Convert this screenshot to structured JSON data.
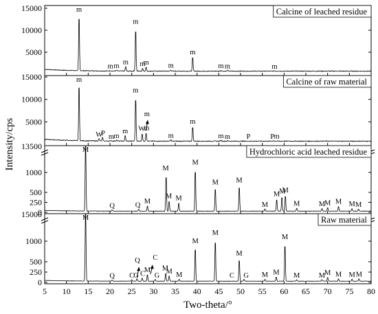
{
  "chart_data": {
    "type": "line",
    "xlabel": "Two-theta/°",
    "ylabel": "Intensity/cps",
    "xlim": [
      5,
      80
    ],
    "x_ticks": [
      "5",
      "10",
      "15",
      "20",
      "25",
      "30",
      "35",
      "40",
      "45",
      "50",
      "55",
      "60",
      "65",
      "70",
      "75",
      "80"
    ],
    "panels": [
      {
        "title": "Calcine of leached residue",
        "ylim": [
          0,
          15000
        ],
        "y_ticks": [
          {
            "v": 5000,
            "t": "5000"
          },
          {
            "v": 10000,
            "t": "10000"
          },
          {
            "v": 15000,
            "t": "15000"
          }
        ],
        "baseline": 700,
        "peaks": [
          [
            12.9,
            14200
          ],
          [
            20.1,
            850
          ],
          [
            21.5,
            900
          ],
          [
            23.6,
            1800
          ],
          [
            25.9,
            11000
          ],
          [
            27.5,
            1400
          ],
          [
            28.3,
            1700
          ],
          [
            34.0,
            1000
          ],
          [
            39.0,
            4100
          ],
          [
            45.5,
            900
          ],
          [
            47.0,
            850
          ],
          [
            57.8,
            800
          ]
        ],
        "labels": [
          {
            "t": "m",
            "x": 12.9,
            "y": 14200
          },
          {
            "t": "m",
            "x": 20.1,
            "y": 850
          },
          {
            "t": "m",
            "x": 21.5,
            "y": 900
          },
          {
            "t": "m",
            "x": 23.6,
            "y": 1800
          },
          {
            "t": "m",
            "x": 25.9,
            "y": 11000
          },
          {
            "t": "m",
            "x": 27.5,
            "y": 1400
          },
          {
            "t": "m",
            "x": 28.3,
            "y": 1700
          },
          {
            "t": "m",
            "x": 34.0,
            "y": 1000
          },
          {
            "t": "m",
            "x": 39.0,
            "y": 4100
          },
          {
            "t": "m",
            "x": 45.5,
            "y": 900
          },
          {
            "t": "m",
            "x": 47.0,
            "y": 850
          },
          {
            "t": "m",
            "x": 57.8,
            "y": 800
          }
        ]
      },
      {
        "title": "Calcine of raw material",
        "ylim": [
          0,
          15000
        ],
        "y_ticks": [
          {
            "v": 5000,
            "t": "5000"
          },
          {
            "v": 10000,
            "t": "10000"
          },
          {
            "v": 15000,
            "t": "15000"
          }
        ],
        "baseline": 700,
        "peaks": [
          [
            12.9,
            14200
          ],
          [
            17.5,
            1200
          ],
          [
            18.3,
            1500
          ],
          [
            20.3,
            800
          ],
          [
            21.5,
            950
          ],
          [
            23.5,
            2000
          ],
          [
            25.9,
            11100
          ],
          [
            27.4,
            2500
          ],
          [
            28.3,
            2700
          ],
          [
            34.0,
            1000
          ],
          [
            39.0,
            4100
          ],
          [
            45.5,
            900
          ],
          [
            47.0,
            800
          ],
          [
            57.5,
            850
          ]
        ],
        "labels": [
          {
            "t": "m",
            "x": 12.9,
            "y": 14200
          },
          {
            "t": "W",
            "x": 17.5,
            "y": 1200
          },
          {
            "t": "P",
            "x": 18.4,
            "y": 1500
          },
          {
            "t": "m",
            "x": 20.3,
            "y": 800
          },
          {
            "t": "m",
            "x": 21.5,
            "y": 950
          },
          {
            "t": "m",
            "x": 23.5,
            "y": 2000
          },
          {
            "t": "m",
            "x": 25.9,
            "y": 11100
          },
          {
            "t": "W",
            "x": 27.3,
            "y": 2500
          },
          {
            "t": "m",
            "x": 28.4,
            "y": 2700
          },
          {
            "t": "m",
            "x": 28.5,
            "y": 5800
          },
          {
            "t": "m",
            "x": 34.0,
            "y": 1000
          },
          {
            "t": "m",
            "x": 39.0,
            "y": 4100
          },
          {
            "t": "m",
            "x": 45.5,
            "y": 900
          },
          {
            "t": "m",
            "x": 47.0,
            "y": 800
          },
          {
            "t": "P",
            "x": 51.8,
            "y": 800
          },
          {
            "t": "P",
            "x": 57.3,
            "y": 800
          },
          {
            "t": "m",
            "x": 58.3,
            "y": 850
          }
        ],
        "arrows": [
          {
            "x": 28.5,
            "y0": 3000,
            "y1": 5000
          }
        ]
      },
      {
        "title": "Hydrochloric acid leached residue",
        "broken_axis": true,
        "break_value": 1500,
        "upper_tick": "13500",
        "ylim": [
          0,
          1500
        ],
        "y_ticks": [
          {
            "v": 0,
            "t": "0"
          },
          {
            "v": 250,
            "t": "250"
          },
          {
            "v": 500,
            "t": "500"
          },
          {
            "v": 1000,
            "t": "1000"
          }
        ],
        "baseline": 30,
        "peaks": [
          [
            14.4,
            2000
          ],
          [
            20.5,
            60
          ],
          [
            26.6,
            80
          ],
          [
            28.6,
            170
          ],
          [
            32.9,
            1000
          ],
          [
            33.6,
            300
          ],
          [
            35.8,
            250
          ],
          [
            39.6,
            1150
          ],
          [
            44.2,
            650
          ],
          [
            49.7,
            700
          ],
          [
            55.6,
            90
          ],
          [
            58.3,
            350
          ],
          [
            59.5,
            420
          ],
          [
            60.3,
            450
          ],
          [
            62.9,
            110
          ],
          [
            68.7,
            100
          ],
          [
            70.0,
            130
          ],
          [
            72.5,
            160
          ],
          [
            75.6,
            100
          ],
          [
            77.1,
            90
          ]
        ],
        "labels": [
          {
            "t": "M",
            "x": 14.4,
            "y": 1490
          },
          {
            "t": "Q",
            "x": 20.5,
            "y": 60
          },
          {
            "t": "Q",
            "x": 26.4,
            "y": 80
          },
          {
            "t": "M",
            "x": 28.6,
            "y": 170
          },
          {
            "t": "M",
            "x": 32.8,
            "y": 1000
          },
          {
            "t": "M",
            "x": 33.5,
            "y": 300
          },
          {
            "t": "M",
            "x": 35.8,
            "y": 250
          },
          {
            "t": "M",
            "x": 39.6,
            "y": 1150
          },
          {
            "t": "M",
            "x": 44.2,
            "y": 650
          },
          {
            "t": "M",
            "x": 49.7,
            "y": 700
          },
          {
            "t": "M",
            "x": 55.6,
            "y": 90
          },
          {
            "t": "M",
            "x": 58.3,
            "y": 350
          },
          {
            "t": "M",
            "x": 59.6,
            "y": 420
          },
          {
            "t": "M",
            "x": 60.3,
            "y": 450
          },
          {
            "t": "M",
            "x": 62.9,
            "y": 110
          },
          {
            "t": "M",
            "x": 68.7,
            "y": 100
          },
          {
            "t": "M",
            "x": 70.0,
            "y": 130
          },
          {
            "t": "M",
            "x": 72.5,
            "y": 160
          },
          {
            "t": "M",
            "x": 75.6,
            "y": 100
          },
          {
            "t": "M",
            "x": 77.1,
            "y": 90
          }
        ]
      },
      {
        "title": "Raw material",
        "broken_axis": true,
        "break_value": 1500,
        "upper_tick": "15000",
        "ylim": [
          0,
          1500
        ],
        "y_ticks": [
          {
            "v": 0,
            "t": "0"
          },
          {
            "v": 250,
            "t": "250"
          },
          {
            "v": 500,
            "t": "500"
          },
          {
            "v": 1000,
            "t": "1000"
          }
        ],
        "baseline": 30,
        "peaks": [
          [
            14.4,
            2000
          ],
          [
            20.5,
            60
          ],
          [
            25.0,
            70
          ],
          [
            26.2,
            90
          ],
          [
            27.4,
            110
          ],
          [
            28.6,
            200
          ],
          [
            30.4,
            80
          ],
          [
            32.8,
            240
          ],
          [
            33.6,
            170
          ],
          [
            35.9,
            80
          ],
          [
            39.6,
            900
          ],
          [
            44.2,
            1100
          ],
          [
            49.7,
            600
          ],
          [
            50.8,
            80
          ],
          [
            55.6,
            80
          ],
          [
            58.2,
            140
          ],
          [
            60.2,
            1000
          ],
          [
            62.9,
            70
          ],
          [
            68.7,
            70
          ],
          [
            70.0,
            130
          ],
          [
            72.5,
            90
          ],
          [
            75.6,
            80
          ],
          [
            77.2,
            90
          ]
        ],
        "labels": [
          {
            "t": "M",
            "x": 14.4,
            "y": 1490
          },
          {
            "t": "Q",
            "x": 20.5,
            "y": 60
          },
          {
            "t": "C",
            "x": 25.0,
            "y": 70
          },
          {
            "t": "G",
            "x": 26.0,
            "y": 70
          },
          {
            "t": "Q",
            "x": 26.3,
            "y": 430
          },
          {
            "t": "C",
            "x": 27.5,
            "y": 110
          },
          {
            "t": "M",
            "x": 28.6,
            "y": 200
          },
          {
            "t": "C",
            "x": 30.4,
            "y": 500
          },
          {
            "t": "G",
            "x": 30.8,
            "y": 70
          },
          {
            "t": "M",
            "x": 32.7,
            "y": 240
          },
          {
            "t": "M",
            "x": 33.6,
            "y": 170
          },
          {
            "t": "M",
            "x": 35.9,
            "y": 80
          },
          {
            "t": "M",
            "x": 39.6,
            "y": 900
          },
          {
            "t": "M",
            "x": 44.2,
            "y": 1100
          },
          {
            "t": "C",
            "x": 48.0,
            "y": 70
          },
          {
            "t": "M",
            "x": 49.7,
            "y": 600
          },
          {
            "t": "G",
            "x": 51.3,
            "y": 70
          },
          {
            "t": "M",
            "x": 55.6,
            "y": 80
          },
          {
            "t": "M",
            "x": 58.2,
            "y": 140
          },
          {
            "t": "M",
            "x": 60.2,
            "y": 1000
          },
          {
            "t": "M",
            "x": 62.9,
            "y": 70
          },
          {
            "t": "M",
            "x": 68.7,
            "y": 70
          },
          {
            "t": "M",
            "x": 70.0,
            "y": 130
          },
          {
            "t": "M",
            "x": 72.5,
            "y": 90
          },
          {
            "t": "M",
            "x": 75.6,
            "y": 80
          },
          {
            "t": "M",
            "x": 77.2,
            "y": 90
          }
        ],
        "arrows": [
          {
            "x": 26.5,
            "y0": 130,
            "y1": 330
          },
          {
            "x": 29.6,
            "y0": 200,
            "y1": 380
          }
        ]
      }
    ]
  }
}
